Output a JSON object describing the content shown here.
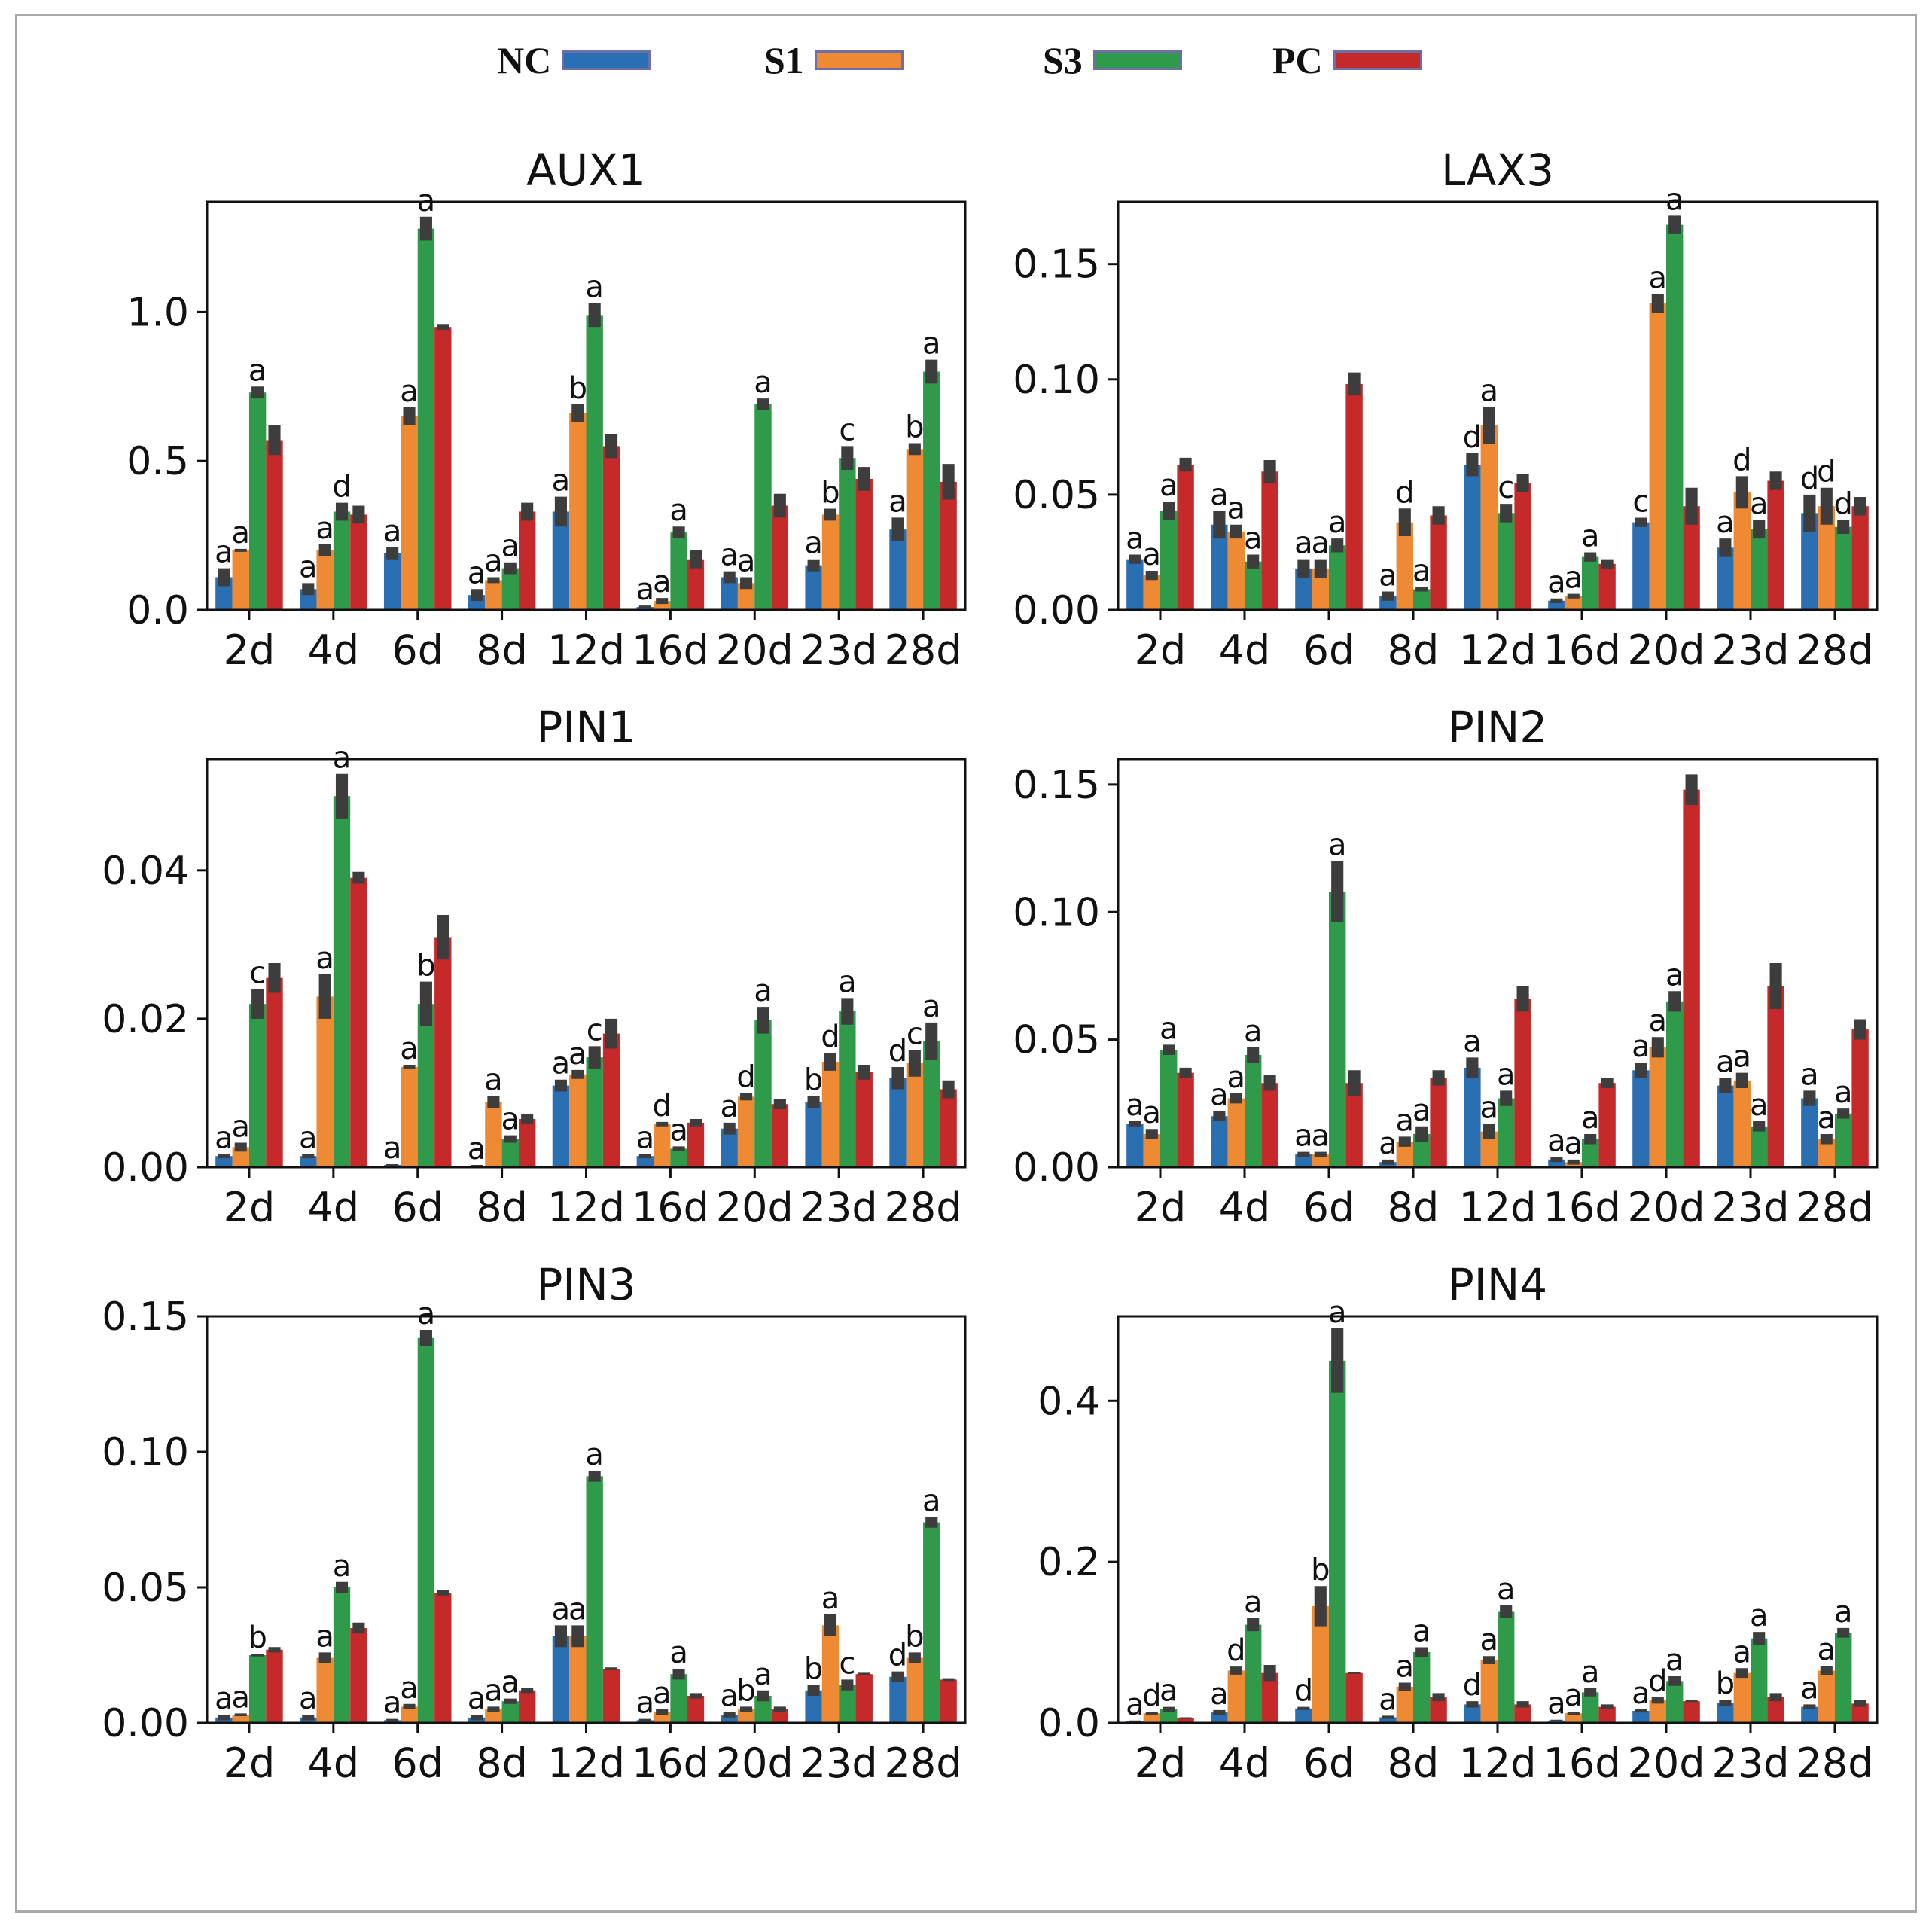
{
  "legend": [
    {
      "label": "NC",
      "color": "#2a6fb2"
    },
    {
      "label": "S1",
      "color": "#ee8a33"
    },
    {
      "label": "S3",
      "color": "#2f9a4a"
    },
    {
      "label": "PC",
      "color": "#c62929"
    }
  ],
  "chart_data": [
    {
      "type": "bar",
      "title": "AUX1",
      "categories": [
        "2d",
        "4d",
        "6d",
        "8d",
        "12d",
        "16d",
        "20d",
        "23d",
        "28d"
      ],
      "ylim": [
        0,
        1.37
      ],
      "yticks": [
        0.0,
        0.5,
        1.0
      ],
      "ytick_labels": [
        "0.0",
        "0.5",
        "1.0"
      ],
      "series": [
        {
          "name": "NC",
          "values": [
            0.11,
            0.07,
            0.19,
            0.05,
            0.33,
            0.01,
            0.11,
            0.15,
            0.27
          ],
          "errors": [
            0.03,
            0.02,
            0.02,
            0.02,
            0.05,
            0.005,
            0.02,
            0.02,
            0.04
          ],
          "letters": [
            "a",
            "a",
            "a",
            "a",
            "a",
            "a",
            "a",
            "a",
            "a"
          ]
        },
        {
          "name": "S1",
          "values": [
            0.2,
            0.2,
            0.65,
            0.1,
            0.66,
            0.03,
            0.09,
            0.32,
            0.54
          ],
          "errors": [
            0.005,
            0.02,
            0.03,
            0.01,
            0.03,
            0.01,
            0.02,
            0.02,
            0.02
          ],
          "letters": [
            "a",
            "a",
            "a",
            "a",
            "b",
            "a",
            "a",
            "b",
            "b"
          ]
        },
        {
          "name": "S3",
          "values": [
            0.73,
            0.33,
            1.28,
            0.14,
            0.99,
            0.26,
            0.69,
            0.51,
            0.8
          ],
          "errors": [
            0.02,
            0.03,
            0.04,
            0.02,
            0.04,
            0.02,
            0.02,
            0.04,
            0.04
          ],
          "letters": [
            "a",
            "d",
            "a",
            "a",
            "a",
            "a",
            "a",
            "c",
            "a"
          ]
        },
        {
          "name": "PC",
          "values": [
            0.57,
            0.32,
            0.95,
            0.33,
            0.55,
            0.17,
            0.35,
            0.44,
            0.43
          ],
          "errors": [
            0.05,
            0.03,
            0.01,
            0.03,
            0.04,
            0.03,
            0.04,
            0.04,
            0.06
          ],
          "letters": [
            "",
            "",
            "",
            "",
            "",
            "",
            "",
            "",
            ""
          ]
        }
      ]
    },
    {
      "type": "bar",
      "title": "LAX3",
      "categories": [
        "2d",
        "4d",
        "6d",
        "8d",
        "12d",
        "16d",
        "20d",
        "23d",
        "28d"
      ],
      "ylim": [
        0,
        0.177
      ],
      "yticks": [
        0.0,
        0.05,
        0.1,
        0.15
      ],
      "ytick_labels": [
        "0.00",
        "0.05",
        "0.10",
        "0.15"
      ],
      "series": [
        {
          "name": "NC",
          "values": [
            0.022,
            0.037,
            0.018,
            0.006,
            0.063,
            0.004,
            0.038,
            0.027,
            0.042
          ],
          "errors": [
            0.002,
            0.006,
            0.004,
            0.002,
            0.005,
            0.001,
            0.002,
            0.004,
            0.008
          ],
          "letters": [
            "a",
            "a",
            "a",
            "a",
            "d",
            "a",
            "c",
            "a",
            "d"
          ]
        },
        {
          "name": "S1",
          "values": [
            0.015,
            0.034,
            0.018,
            0.038,
            0.08,
            0.006,
            0.133,
            0.051,
            0.045
          ],
          "errors": [
            0.002,
            0.003,
            0.004,
            0.006,
            0.008,
            0.001,
            0.004,
            0.007,
            0.008
          ],
          "letters": [
            "a",
            "a",
            "a",
            "d",
            "a",
            "a",
            "a",
            "d",
            "d"
          ]
        },
        {
          "name": "S3",
          "values": [
            0.043,
            0.021,
            0.028,
            0.009,
            0.042,
            0.023,
            0.167,
            0.035,
            0.036
          ],
          "errors": [
            0.004,
            0.003,
            0.003,
            0.001,
            0.004,
            0.002,
            0.004,
            0.004,
            0.003
          ],
          "letters": [
            "a",
            "a",
            "a",
            "a",
            "c",
            "a",
            "a",
            "a",
            "d"
          ]
        },
        {
          "name": "PC",
          "values": [
            0.063,
            0.06,
            0.098,
            0.041,
            0.055,
            0.02,
            0.045,
            0.056,
            0.045
          ],
          "errors": [
            0.003,
            0.005,
            0.005,
            0.004,
            0.004,
            0.002,
            0.008,
            0.004,
            0.004
          ],
          "letters": [
            "",
            "",
            "",
            "",
            "",
            "",
            "",
            "",
            ""
          ]
        }
      ]
    },
    {
      "type": "bar",
      "title": "PIN1",
      "categories": [
        "2d",
        "4d",
        "6d",
        "8d",
        "12d",
        "16d",
        "20d",
        "23d",
        "28d"
      ],
      "ylim": [
        0,
        0.055
      ],
      "yticks": [
        0.0,
        0.02,
        0.04
      ],
      "ytick_labels": [
        "0.00",
        "0.02",
        "0.04"
      ],
      "series": [
        {
          "name": "NC",
          "values": [
            0.0015,
            0.0015,
            0.0003,
            0.0002,
            0.011,
            0.0015,
            0.0052,
            0.0088,
            0.012
          ],
          "errors": [
            0.0003,
            0.0003,
            0.0001,
            0.0001,
            0.0008,
            0.0003,
            0.0008,
            0.0008,
            0.0015
          ],
          "letters": [
            "a",
            "a",
            "a",
            "a",
            "a",
            "a",
            "a",
            "b",
            "d"
          ]
        },
        {
          "name": "S1",
          "values": [
            0.0027,
            0.023,
            0.0135,
            0.0088,
            0.0125,
            0.0058,
            0.0095,
            0.0142,
            0.014
          ],
          "errors": [
            0.0006,
            0.003,
            0.0003,
            0.0008,
            0.0006,
            0.0003,
            0.0005,
            0.0012,
            0.0018
          ],
          "letters": [
            "a",
            "a",
            "a",
            "a",
            "a",
            "d",
            "d",
            "d",
            "c"
          ]
        },
        {
          "name": "S3",
          "values": [
            0.022,
            0.05,
            0.022,
            0.0038,
            0.0148,
            0.0025,
            0.0198,
            0.021,
            0.017
          ],
          "errors": [
            0.002,
            0.003,
            0.003,
            0.0005,
            0.0015,
            0.0003,
            0.0018,
            0.0018,
            0.0025
          ],
          "letters": [
            "c",
            "a",
            "b",
            "a",
            "c",
            "a",
            "a",
            "a",
            "a"
          ]
        },
        {
          "name": "PC",
          "values": [
            0.0255,
            0.039,
            0.031,
            0.0065,
            0.018,
            0.006,
            0.0085,
            0.0128,
            0.0105
          ],
          "errors": [
            0.002,
            0.0008,
            0.003,
            0.0006,
            0.002,
            0.0005,
            0.0007,
            0.001,
            0.0012
          ],
          "letters": [
            "",
            "",
            "",
            "",
            "",
            "",
            "",
            "",
            ""
          ]
        }
      ]
    },
    {
      "type": "bar",
      "title": "PIN2",
      "categories": [
        "2d",
        "4d",
        "6d",
        "8d",
        "12d",
        "16d",
        "20d",
        "23d",
        "28d"
      ],
      "ylim": [
        0,
        0.16
      ],
      "yticks": [
        0.0,
        0.05,
        0.1,
        0.15
      ],
      "ytick_labels": [
        "0.00",
        "0.05",
        "0.10",
        "0.15"
      ],
      "series": [
        {
          "name": "NC",
          "values": [
            0.017,
            0.02,
            0.005,
            0.002,
            0.039,
            0.003,
            0.038,
            0.032,
            0.027
          ],
          "errors": [
            0.001,
            0.002,
            0.001,
            0.001,
            0.004,
            0.001,
            0.003,
            0.003,
            0.003
          ],
          "letters": [
            "a",
            "a",
            "a",
            "a",
            "a",
            "a",
            "a",
            "a",
            "a"
          ]
        },
        {
          "name": "S1",
          "values": [
            0.013,
            0.027,
            0.005,
            0.01,
            0.014,
            0.002,
            0.047,
            0.034,
            0.011
          ],
          "errors": [
            0.002,
            0.002,
            0.001,
            0.002,
            0.003,
            0.001,
            0.004,
            0.003,
            0.002
          ],
          "letters": [
            "a",
            "a",
            "a",
            "a",
            "a",
            "a",
            "a",
            "a",
            "a"
          ]
        },
        {
          "name": "S3",
          "values": [
            0.046,
            0.044,
            0.108,
            0.013,
            0.027,
            0.011,
            0.065,
            0.016,
            0.021
          ],
          "errors": [
            0.002,
            0.003,
            0.012,
            0.003,
            0.003,
            0.002,
            0.004,
            0.002,
            0.002
          ],
          "letters": [
            "a",
            "a",
            "a",
            "a",
            "a",
            "a",
            "a",
            "a",
            "a"
          ]
        },
        {
          "name": "PC",
          "values": [
            0.037,
            0.033,
            0.033,
            0.035,
            0.066,
            0.033,
            0.148,
            0.071,
            0.054
          ],
          "errors": [
            0.002,
            0.003,
            0.005,
            0.003,
            0.005,
            0.002,
            0.006,
            0.009,
            0.004
          ],
          "letters": [
            "",
            "",
            "",
            "",
            "",
            "",
            "",
            "",
            ""
          ]
        }
      ]
    },
    {
      "type": "bar",
      "title": "PIN3",
      "categories": [
        "2d",
        "4d",
        "6d",
        "8d",
        "12d",
        "16d",
        "20d",
        "23d",
        "28d"
      ],
      "ylim": [
        0,
        0.15
      ],
      "yticks": [
        0.0,
        0.05,
        0.1,
        0.15
      ],
      "ytick_labels": [
        "0.00",
        "0.05",
        "0.10",
        "0.15"
      ],
      "series": [
        {
          "name": "NC",
          "values": [
            0.002,
            0.002,
            0.001,
            0.002,
            0.032,
            0.001,
            0.003,
            0.012,
            0.017
          ],
          "errors": [
            0.001,
            0.001,
            0.0005,
            0.001,
            0.004,
            0.0005,
            0.001,
            0.002,
            0.002
          ],
          "letters": [
            "a",
            "a",
            "a",
            "a",
            "a",
            "a",
            "a",
            "b",
            "d"
          ]
        },
        {
          "name": "S1",
          "values": [
            0.003,
            0.024,
            0.006,
            0.005,
            0.032,
            0.004,
            0.005,
            0.036,
            0.024
          ],
          "errors": [
            0.0005,
            0.002,
            0.001,
            0.001,
            0.004,
            0.001,
            0.001,
            0.004,
            0.002
          ],
          "letters": [
            "a",
            "a",
            "a",
            "a",
            "a",
            "a",
            "b",
            "a",
            "b"
          ]
        },
        {
          "name": "S3",
          "values": [
            0.025,
            0.05,
            0.142,
            0.008,
            0.091,
            0.018,
            0.01,
            0.014,
            0.074
          ],
          "errors": [
            0.0005,
            0.002,
            0.003,
            0.001,
            0.002,
            0.002,
            0.002,
            0.002,
            0.002
          ],
          "letters": [
            "b",
            "a",
            "a",
            "a",
            "a",
            "a",
            "a",
            "c",
            "a"
          ]
        },
        {
          "name": "PC",
          "values": [
            0.027,
            0.035,
            0.048,
            0.012,
            0.02,
            0.01,
            0.005,
            0.018,
            0.016
          ],
          "errors": [
            0.001,
            0.002,
            0.001,
            0.001,
            0.0005,
            0.001,
            0.001,
            0.0005,
            0.0005
          ],
          "letters": [
            "",
            "",
            "",
            "",
            "",
            "",
            "",
            "",
            ""
          ]
        }
      ]
    },
    {
      "type": "bar",
      "title": "PIN4",
      "categories": [
        "2d",
        "4d",
        "6d",
        "8d",
        "12d",
        "16d",
        "20d",
        "23d",
        "28d"
      ],
      "ylim": [
        0,
        0.505
      ],
      "yticks": [
        0.0,
        0.2,
        0.4
      ],
      "ytick_labels": [
        "0.0",
        "0.2",
        "0.4"
      ],
      "series": [
        {
          "name": "NC",
          "values": [
            0.002,
            0.013,
            0.018,
            0.007,
            0.023,
            0.003,
            0.015,
            0.025,
            0.02
          ],
          "errors": [
            0.001,
            0.003,
            0.002,
            0.002,
            0.004,
            0.001,
            0.002,
            0.004,
            0.003
          ],
          "letters": [
            "a",
            "a",
            "d",
            "a",
            "d",
            "a",
            "a",
            "b",
            "a"
          ]
        },
        {
          "name": "S1",
          "values": [
            0.012,
            0.065,
            0.145,
            0.045,
            0.078,
            0.012,
            0.028,
            0.062,
            0.065
          ],
          "errors": [
            0.002,
            0.005,
            0.025,
            0.005,
            0.005,
            0.002,
            0.004,
            0.006,
            0.006
          ],
          "letters": [
            "d",
            "d",
            "b",
            "a",
            "a",
            "a",
            "d",
            "a",
            "a"
          ]
        },
        {
          "name": "S3",
          "values": [
            0.017,
            0.122,
            0.45,
            0.088,
            0.138,
            0.038,
            0.052,
            0.105,
            0.112
          ],
          "errors": [
            0.003,
            0.008,
            0.04,
            0.006,
            0.008,
            0.005,
            0.006,
            0.008,
            0.006
          ],
          "letters": [
            "a",
            "a",
            "a",
            "a",
            "a",
            "a",
            "a",
            "a",
            "a"
          ]
        },
        {
          "name": "PC",
          "values": [
            0.006,
            0.062,
            0.062,
            0.032,
            0.023,
            0.02,
            0.027,
            0.032,
            0.024
          ],
          "errors": [
            0.001,
            0.01,
            0.001,
            0.005,
            0.004,
            0.003,
            0.001,
            0.005,
            0.004
          ],
          "letters": [
            "",
            "",
            "",
            "",
            "",
            "",
            "",
            "",
            ""
          ]
        }
      ]
    }
  ]
}
